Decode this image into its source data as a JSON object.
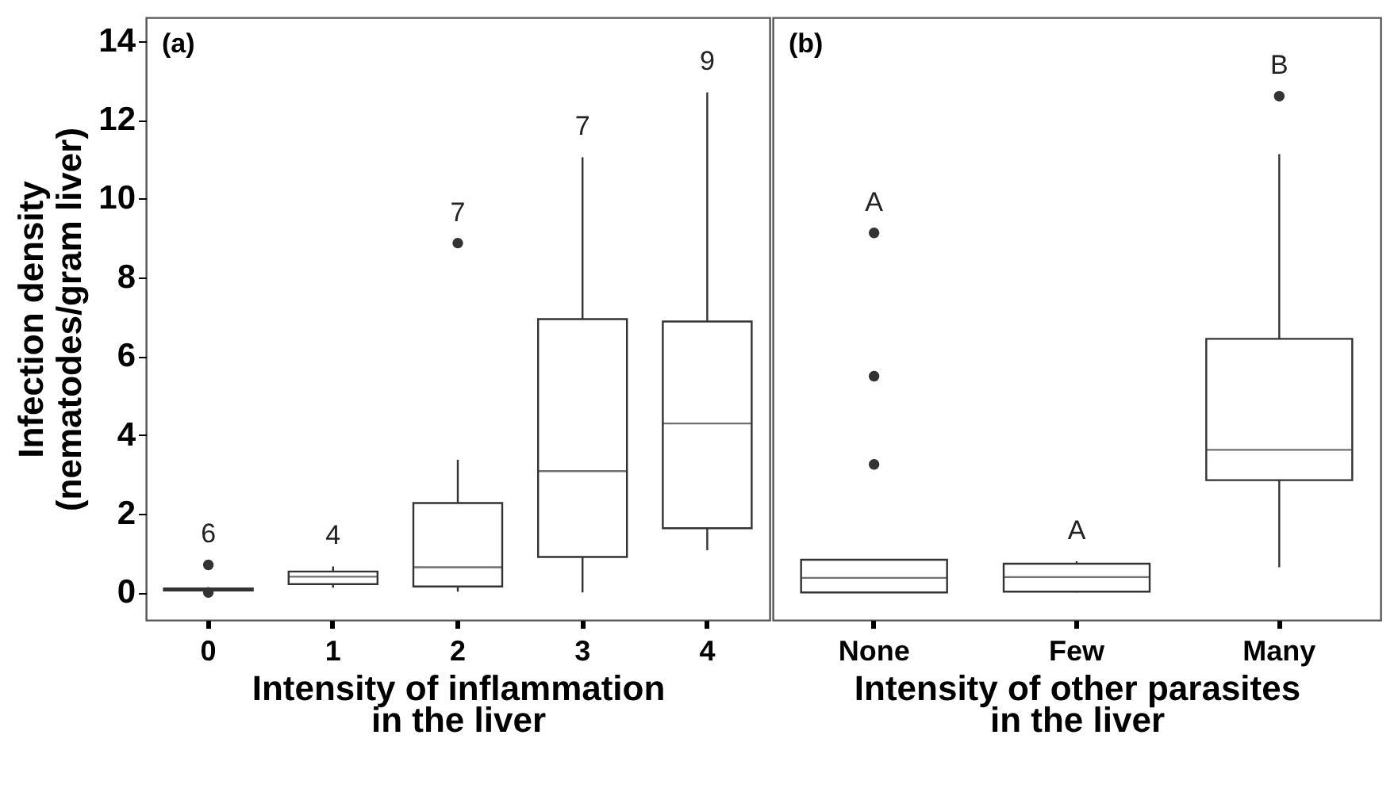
{
  "chart_data": [
    {
      "type": "box",
      "title": "(a)",
      "xlabel": "Intensity of inflammation\nin the liver",
      "ylabel": "Infection density\n(nematodes/gram liver)",
      "categories": [
        "0",
        "1",
        "2",
        "3",
        "4"
      ],
      "ylim": [
        -0.7,
        14.6
      ],
      "yticks": [
        0,
        2,
        4,
        6,
        8,
        10,
        12,
        14
      ],
      "boxes": [
        {
          "low": 0.05,
          "q1": 0.05,
          "median": 0.08,
          "q3": 0.1,
          "high": 0.1,
          "outliers": [
            0.7,
            0
          ]
        },
        {
          "low": 0.12,
          "q1": 0.21,
          "median": 0.4,
          "q3": 0.53,
          "high": 0.66
        },
        {
          "low": 0.02,
          "q1": 0.15,
          "median": 0.64,
          "q3": 2.27,
          "high": 3.37,
          "outliers": [
            8.87
          ]
        },
        {
          "low": 0,
          "q1": 0.9,
          "median": 3.08,
          "q3": 6.94,
          "high": 11.05
        },
        {
          "low": 1.07,
          "q1": 1.63,
          "median": 4.29,
          "q3": 6.88,
          "high": 12.7
        }
      ],
      "annotations": [
        "6",
        "4",
        "7",
        "7",
        "9"
      ]
    },
    {
      "type": "box",
      "title": "(b)",
      "xlabel": "Intensity of other parasites\nin the liver",
      "categories": [
        "None",
        "Few",
        "Many"
      ],
      "ylim": [
        -0.7,
        14.6
      ],
      "tick_labels": "x",
      "boxes": [
        {
          "low": 0,
          "q1": 0,
          "median": 0.37,
          "q3": 0.83,
          "high": 0.83,
          "outliers": [
            9.13,
            5.49,
            3.25
          ]
        },
        {
          "low": 0,
          "q1": 0.02,
          "median": 0.39,
          "q3": 0.73,
          "high": 0.79
        },
        {
          "low": 0.64,
          "q1": 2.85,
          "median": 3.62,
          "q3": 6.44,
          "high": 11.13,
          "outliers": [
            12.6
          ]
        }
      ],
      "annotations": [
        "A",
        "A",
        "B"
      ]
    }
  ]
}
